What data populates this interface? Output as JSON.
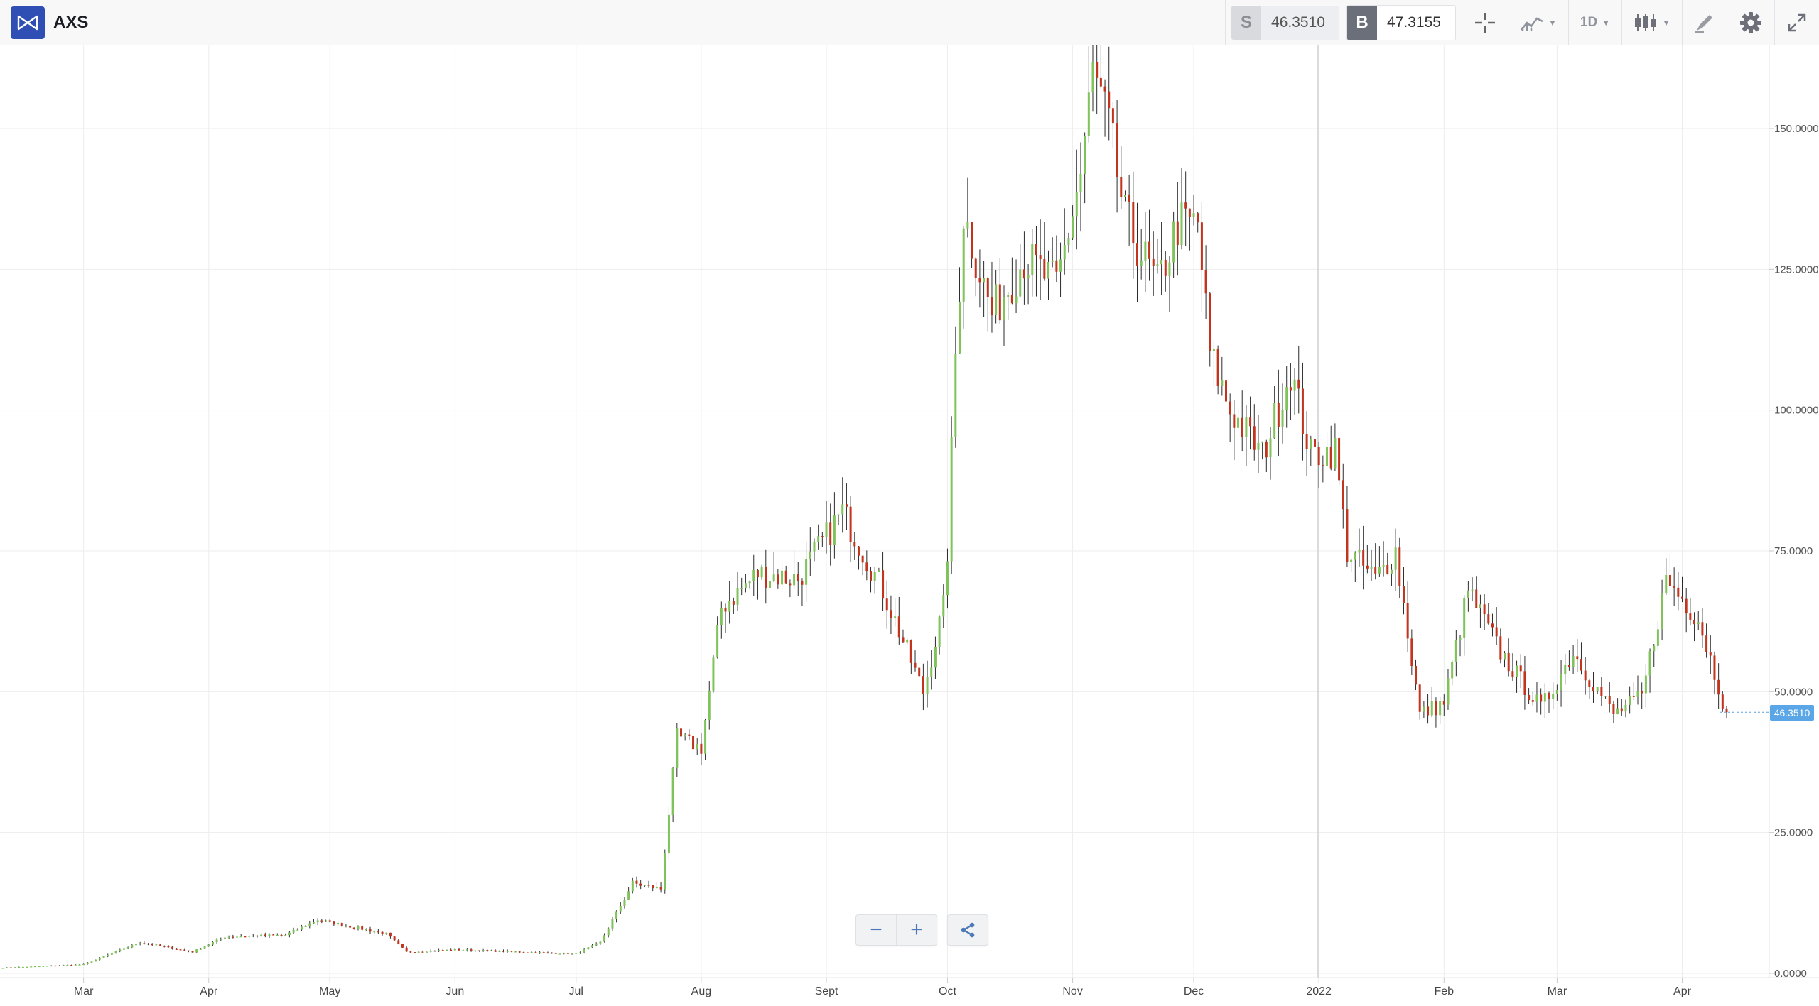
{
  "toolbar": {
    "symbol": "AXS",
    "sell": {
      "tag": "S",
      "value": "46.3510"
    },
    "buy": {
      "tag": "B",
      "value": "47.3155"
    },
    "interval_label": "1D",
    "icons": [
      "crosshair-icon",
      "indicators-icon",
      "candlestick-type-icon",
      "drawing-icon",
      "gear-icon",
      "fullscreen-icon"
    ]
  },
  "zoom": {
    "out_label": "−",
    "in_label": "+"
  },
  "current_price_label": "46.3510",
  "colors": {
    "up": "#7fc35a",
    "down": "#c2341d",
    "wick": "#2b2b2b",
    "grid": "#ededed",
    "price_tag": "#5aa6e6",
    "accent": "#2f4fb4"
  },
  "chart_data": {
    "type": "candlestick",
    "title": "",
    "xlabel": "",
    "ylabel": "",
    "ylim": [
      0,
      165
    ],
    "yticks": [
      "0.0000",
      "25.0000",
      "50.0000",
      "75.0000",
      "100.0000",
      "125.0000",
      "150.0000"
    ],
    "ytick_values": [
      0,
      25,
      50,
      75,
      100,
      125,
      150
    ],
    "xticks": [
      "Mar",
      "Apr",
      "May",
      "Jun",
      "Jul",
      "Aug",
      "Sept",
      "Oct",
      "Nov",
      "Dec",
      "2022",
      "Feb",
      "Mar",
      "Apr"
    ],
    "xtick_dates": [
      "2021-03-01",
      "2021-04-01",
      "2021-05-01",
      "2021-06-01",
      "2021-07-01",
      "2021-08-01",
      "2021-09-01",
      "2021-10-01",
      "2021-11-01",
      "2021-12-01",
      "2022-01-01",
      "2022-02-01",
      "2022-03-01",
      "2022-04-01"
    ],
    "x_start": "2021-02-09",
    "x_end": "2022-04-12",
    "grid": true,
    "daily_close_anchors": [
      [
        "2021-02-09",
        1.0
      ],
      [
        "2021-03-01",
        1.6
      ],
      [
        "2021-03-15",
        5.5
      ],
      [
        "2021-03-28",
        3.8
      ],
      [
        "2021-04-05",
        6.5
      ],
      [
        "2021-04-20",
        6.8
      ],
      [
        "2021-04-28",
        9.5
      ],
      [
        "2021-05-15",
        7.0
      ],
      [
        "2021-05-20",
        3.8
      ],
      [
        "2021-06-01",
        4.2
      ],
      [
        "2021-06-25",
        3.6
      ],
      [
        "2021-07-01",
        3.5
      ],
      [
        "2021-07-07",
        5.5
      ],
      [
        "2021-07-15",
        16.0
      ],
      [
        "2021-07-22",
        15.0
      ],
      [
        "2021-07-26",
        42.0
      ],
      [
        "2021-08-01",
        40.0
      ],
      [
        "2021-08-06",
        65.0
      ],
      [
        "2021-08-15",
        71.0
      ],
      [
        "2021-08-25",
        70.0
      ],
      [
        "2021-09-05",
        82.0
      ],
      [
        "2021-09-15",
        68.0
      ],
      [
        "2021-09-25",
        50.0
      ],
      [
        "2021-09-30",
        65.0
      ],
      [
        "2021-10-01",
        75.0
      ],
      [
        "2021-10-03",
        110.0
      ],
      [
        "2021-10-05",
        135.0
      ],
      [
        "2021-10-12",
        117.0
      ],
      [
        "2021-10-20",
        127.0
      ],
      [
        "2021-10-28",
        122.0
      ],
      [
        "2021-11-03",
        142.0
      ],
      [
        "2021-11-06",
        160.0
      ],
      [
        "2021-11-10",
        150.0
      ],
      [
        "2021-11-14",
        134.0
      ],
      [
        "2021-11-22",
        122.0
      ],
      [
        "2021-11-27",
        133.0
      ],
      [
        "2021-12-02",
        133.0
      ],
      [
        "2021-12-05",
        110.0
      ],
      [
        "2021-12-10",
        100.0
      ],
      [
        "2021-12-18",
        92.0
      ],
      [
        "2021-12-25",
        107.0
      ],
      [
        "2021-12-30",
        92.0
      ],
      [
        "2022-01-05",
        93.0
      ],
      [
        "2022-01-08",
        75.0
      ],
      [
        "2022-01-15",
        70.0
      ],
      [
        "2022-01-20",
        75.0
      ],
      [
        "2022-01-26",
        46.0
      ],
      [
        "2022-02-01",
        48.0
      ],
      [
        "2022-02-07",
        68.0
      ],
      [
        "2022-02-15",
        57.0
      ],
      [
        "2022-02-25",
        47.0
      ],
      [
        "2022-03-05",
        57.0
      ],
      [
        "2022-03-15",
        46.0
      ],
      [
        "2022-03-22",
        49.0
      ],
      [
        "2022-03-28",
        70.0
      ],
      [
        "2022-04-05",
        63.0
      ],
      [
        "2022-04-12",
        46.35
      ]
    ]
  }
}
